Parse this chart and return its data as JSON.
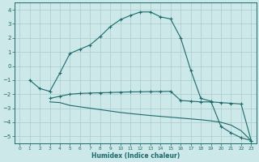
{
  "bg_color": "#cce8e8",
  "grid_color": "#aacccc",
  "line_color": "#1a6b6b",
  "xlabel": "Humidex (Indice chaleur)",
  "xlim": [
    -0.5,
    23.5
  ],
  "ylim": [
    -5.5,
    4.5
  ],
  "yticks": [
    -5,
    -4,
    -3,
    -2,
    -1,
    0,
    1,
    2,
    3,
    4
  ],
  "xticks": [
    0,
    1,
    2,
    3,
    4,
    5,
    6,
    7,
    8,
    9,
    10,
    11,
    12,
    13,
    14,
    15,
    16,
    17,
    18,
    19,
    20,
    21,
    22,
    23
  ],
  "curve1_x": [
    1,
    2,
    3,
    4,
    5,
    6,
    7,
    8,
    9,
    10,
    11,
    12,
    13,
    14,
    15,
    16,
    17,
    18,
    19,
    20,
    21,
    22,
    23
  ],
  "curve1_y": [
    -1.0,
    -1.6,
    -1.8,
    -0.5,
    0.9,
    1.2,
    1.5,
    2.1,
    2.8,
    3.3,
    3.6,
    3.85,
    3.85,
    3.5,
    3.35,
    2.0,
    -0.3,
    -2.3,
    -2.5,
    -4.3,
    -4.75,
    -5.1,
    -5.3
  ],
  "curve2_x": [
    3,
    4,
    5,
    6,
    7,
    8,
    9,
    10,
    11,
    12,
    13,
    14,
    15,
    16,
    17,
    18,
    19,
    20,
    21,
    22,
    23
  ],
  "curve2_y": [
    -2.3,
    -2.15,
    -2.0,
    -1.95,
    -1.92,
    -1.9,
    -1.88,
    -1.86,
    -1.84,
    -1.83,
    -1.82,
    -1.81,
    -1.8,
    -2.45,
    -2.5,
    -2.55,
    -2.55,
    -2.6,
    -2.65,
    -2.7,
    -5.3
  ],
  "curve3_x": [
    3,
    4,
    5,
    6,
    7,
    8,
    9,
    10,
    11,
    12,
    13,
    14,
    15,
    16,
    17,
    18,
    19,
    20,
    21,
    22,
    23
  ],
  "curve3_y": [
    -2.55,
    -2.6,
    -2.8,
    -2.9,
    -3.0,
    -3.1,
    -3.2,
    -3.3,
    -3.38,
    -3.45,
    -3.52,
    -3.58,
    -3.64,
    -3.7,
    -3.76,
    -3.82,
    -3.9,
    -4.0,
    -4.2,
    -4.6,
    -5.3
  ]
}
